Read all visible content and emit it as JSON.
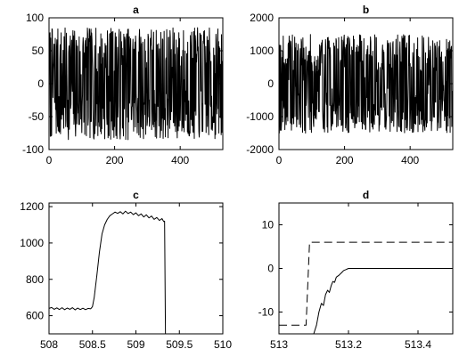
{
  "chart_data": [
    {
      "type": "line",
      "title": "a",
      "xlim": [
        0,
        530
      ],
      "ylim": [
        -100,
        100
      ],
      "xticks": [
        0,
        200,
        400
      ],
      "yticks": [
        -100,
        -50,
        0,
        50,
        100
      ],
      "xtick_labels": [
        "0",
        "200",
        "400"
      ],
      "ytick_labels": [
        "-100",
        "-50",
        "0",
        "50",
        "100"
      ],
      "grid": false,
      "line_color": "#000000",
      "series": [
        {
          "kind": "noise",
          "n": 530,
          "amplitude": 85,
          "seed": 7
        }
      ]
    },
    {
      "type": "line",
      "title": "b",
      "xlim": [
        0,
        530
      ],
      "ylim": [
        -2000,
        2000
      ],
      "xticks": [
        0,
        200,
        400
      ],
      "yticks": [
        -2000,
        -1000,
        0,
        1000,
        2000
      ],
      "xtick_labels": [
        "0",
        "200",
        "400"
      ],
      "ytick_labels": [
        "-2000",
        "-1000",
        "0",
        "1000",
        "2000"
      ],
      "grid": false,
      "line_color": "#000000",
      "series": [
        {
          "kind": "noise",
          "n": 530,
          "amplitude": 1500,
          "seed": 19
        }
      ]
    },
    {
      "type": "line",
      "title": "c",
      "xlim": [
        508,
        510
      ],
      "ylim": [
        500,
        1220
      ],
      "xticks": [
        508,
        508.5,
        509,
        509.5,
        510
      ],
      "yticks": [
        600,
        800,
        1000,
        1200
      ],
      "xtick_labels": [
        "508",
        "508.5",
        "509",
        "509.5",
        "510"
      ],
      "ytick_labels": [
        "600",
        "800",
        "1000",
        "1200"
      ],
      "grid": false,
      "line_color": "#000000",
      "series": [
        {
          "style": "solid",
          "points": [
            [
              508.0,
              640
            ],
            [
              508.03,
              645
            ],
            [
              508.06,
              635
            ],
            [
              508.09,
              643
            ],
            [
              508.12,
              634
            ],
            [
              508.15,
              644
            ],
            [
              508.18,
              633
            ],
            [
              508.21,
              642
            ],
            [
              508.24,
              635
            ],
            [
              508.27,
              644
            ],
            [
              508.3,
              632
            ],
            [
              508.33,
              642
            ],
            [
              508.36,
              634
            ],
            [
              508.39,
              641
            ],
            [
              508.42,
              633
            ],
            [
              508.45,
              640
            ],
            [
              508.48,
              638
            ],
            [
              508.5,
              650
            ],
            [
              508.52,
              700
            ],
            [
              508.55,
              820
            ],
            [
              508.58,
              950
            ],
            [
              508.61,
              1050
            ],
            [
              508.64,
              1100
            ],
            [
              508.67,
              1130
            ],
            [
              508.7,
              1150
            ],
            [
              508.73,
              1160
            ],
            [
              508.76,
              1170
            ],
            [
              508.79,
              1163
            ],
            [
              508.82,
              1172
            ],
            [
              508.85,
              1160
            ],
            [
              508.88,
              1175
            ],
            [
              508.91,
              1162
            ],
            [
              508.94,
              1170
            ],
            [
              508.97,
              1156
            ],
            [
              509.0,
              1166
            ],
            [
              509.03,
              1150
            ],
            [
              509.06,
              1160
            ],
            [
              509.09,
              1143
            ],
            [
              509.12,
              1155
            ],
            [
              509.15,
              1138
            ],
            [
              509.18,
              1148
            ],
            [
              509.21,
              1130
            ],
            [
              509.24,
              1140
            ],
            [
              509.27,
              1124
            ],
            [
              509.3,
              1134
            ],
            [
              509.32,
              1118
            ],
            [
              509.33,
              1120
            ],
            [
              509.34,
              500
            ]
          ]
        }
      ]
    },
    {
      "type": "line",
      "title": "d",
      "xlim": [
        513,
        513.5
      ],
      "ylim": [
        -15,
        15
      ],
      "xticks": [
        513,
        513.2,
        513.4
      ],
      "yticks": [
        -10,
        0,
        10
      ],
      "xtick_labels": [
        "513",
        "513.2",
        "513.4"
      ],
      "ytick_labels": [
        "-10",
        "0",
        "10"
      ],
      "grid": false,
      "line_color": "#000000",
      "series": [
        {
          "style": "dashed",
          "points": [
            [
              513.0,
              -13
            ],
            [
              513.078,
              -13
            ],
            [
              513.088,
              6
            ],
            [
              513.5,
              6
            ]
          ]
        },
        {
          "style": "solid",
          "points": [
            [
              513.1,
              -15
            ],
            [
              513.108,
              -13
            ],
            [
              513.115,
              -10
            ],
            [
              513.122,
              -8
            ],
            [
              513.128,
              -8.5
            ],
            [
              513.134,
              -6
            ],
            [
              513.14,
              -5
            ],
            [
              513.145,
              -5.5
            ],
            [
              513.15,
              -4
            ],
            [
              513.155,
              -3
            ],
            [
              513.16,
              -3.2
            ],
            [
              513.165,
              -2
            ],
            [
              513.172,
              -1.6
            ],
            [
              513.18,
              -1
            ],
            [
              513.186,
              -0.5
            ],
            [
              513.192,
              -0.3
            ],
            [
              513.2,
              0
            ],
            [
              513.5,
              0
            ]
          ]
        }
      ]
    }
  ]
}
